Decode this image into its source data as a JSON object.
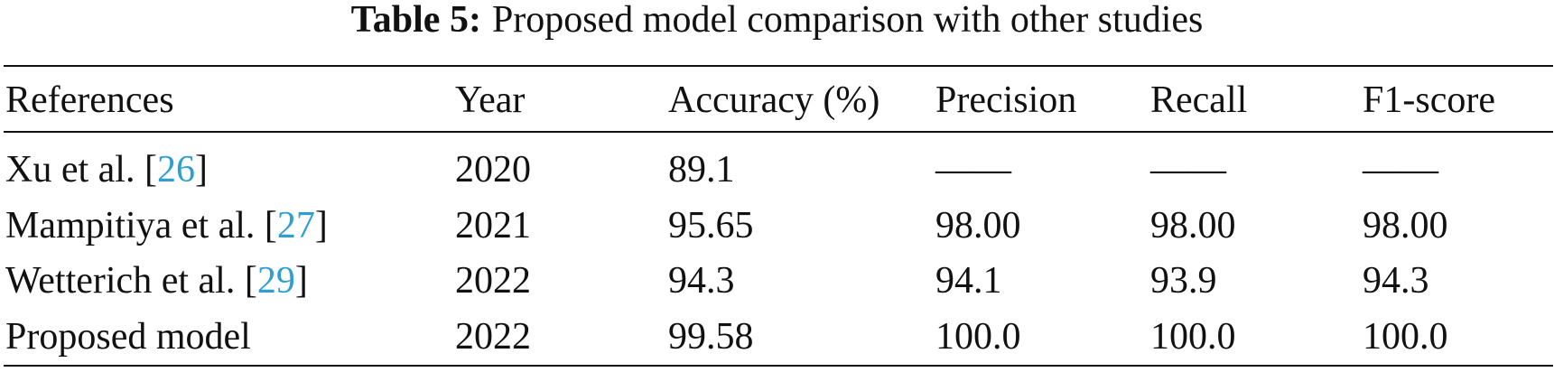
{
  "caption": {
    "label": "Table 5:",
    "title": "Proposed model comparison with other studies"
  },
  "table": {
    "header": [
      "References",
      "Year",
      "Accuracy (%)",
      "Precision",
      "Recall",
      "F1-score"
    ],
    "rows": [
      [
        {
          "text": "Xu et al. [",
          "cite": "26",
          "end": "]"
        },
        "2020",
        "89.1",
        "——",
        "——",
        "——"
      ],
      [
        {
          "text": "Mampitiya et al. [",
          "cite": "27",
          "end": "]"
        },
        "2021",
        "95.65",
        "98.00",
        "98.00",
        "98.00"
      ],
      [
        {
          "text": "Wetterich et al. [",
          "cite": "29",
          "end": "]"
        },
        "2022",
        "94.3",
        "94.1",
        "93.9",
        "94.3"
      ],
      [
        {
          "text": "Proposed model"
        },
        "2022",
        "99.58",
        "100.0",
        "100.0",
        "100.0"
      ]
    ]
  }
}
